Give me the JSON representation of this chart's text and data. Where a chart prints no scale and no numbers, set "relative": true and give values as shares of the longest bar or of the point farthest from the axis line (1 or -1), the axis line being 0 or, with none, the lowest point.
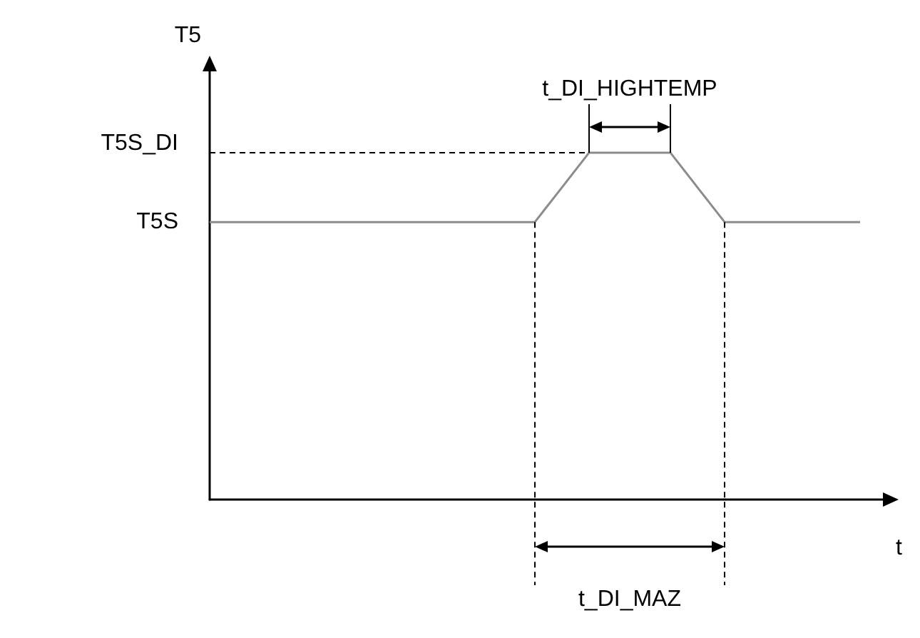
{
  "chart_data": {
    "type": "line",
    "ylabel": "T5",
    "xlabel": "t",
    "relative": true,
    "categories": [
      null,
      null,
      null,
      null,
      null,
      null,
      null,
      null,
      null,
      null,
      null,
      null,
      null,
      null,
      null,
      null,
      null,
      null,
      null,
      null,
      null,
      null,
      null,
      null,
      null,
      null
    ],
    "series": [
      {
        "color": "#8c8c8c",
        "values": [
          0.8,
          0.8,
          0.8,
          0.8,
          0.8,
          0.8,
          0.8,
          0.8,
          0.8,
          0.8,
          0.8,
          0.8,
          0.8,
          0.9,
          1,
          1,
          1,
          1,
          0.9,
          0.8,
          0.8,
          0.8,
          0.8,
          0.8,
          0.8,
          null
        ]
      }
    ],
    "marker": "none",
    "line_style": "solid",
    "annotations": [
      "T5S_DI",
      "T5S",
      "t_DI_HIGHTEMP",
      "t_DI_MAZ"
    ]
  }
}
